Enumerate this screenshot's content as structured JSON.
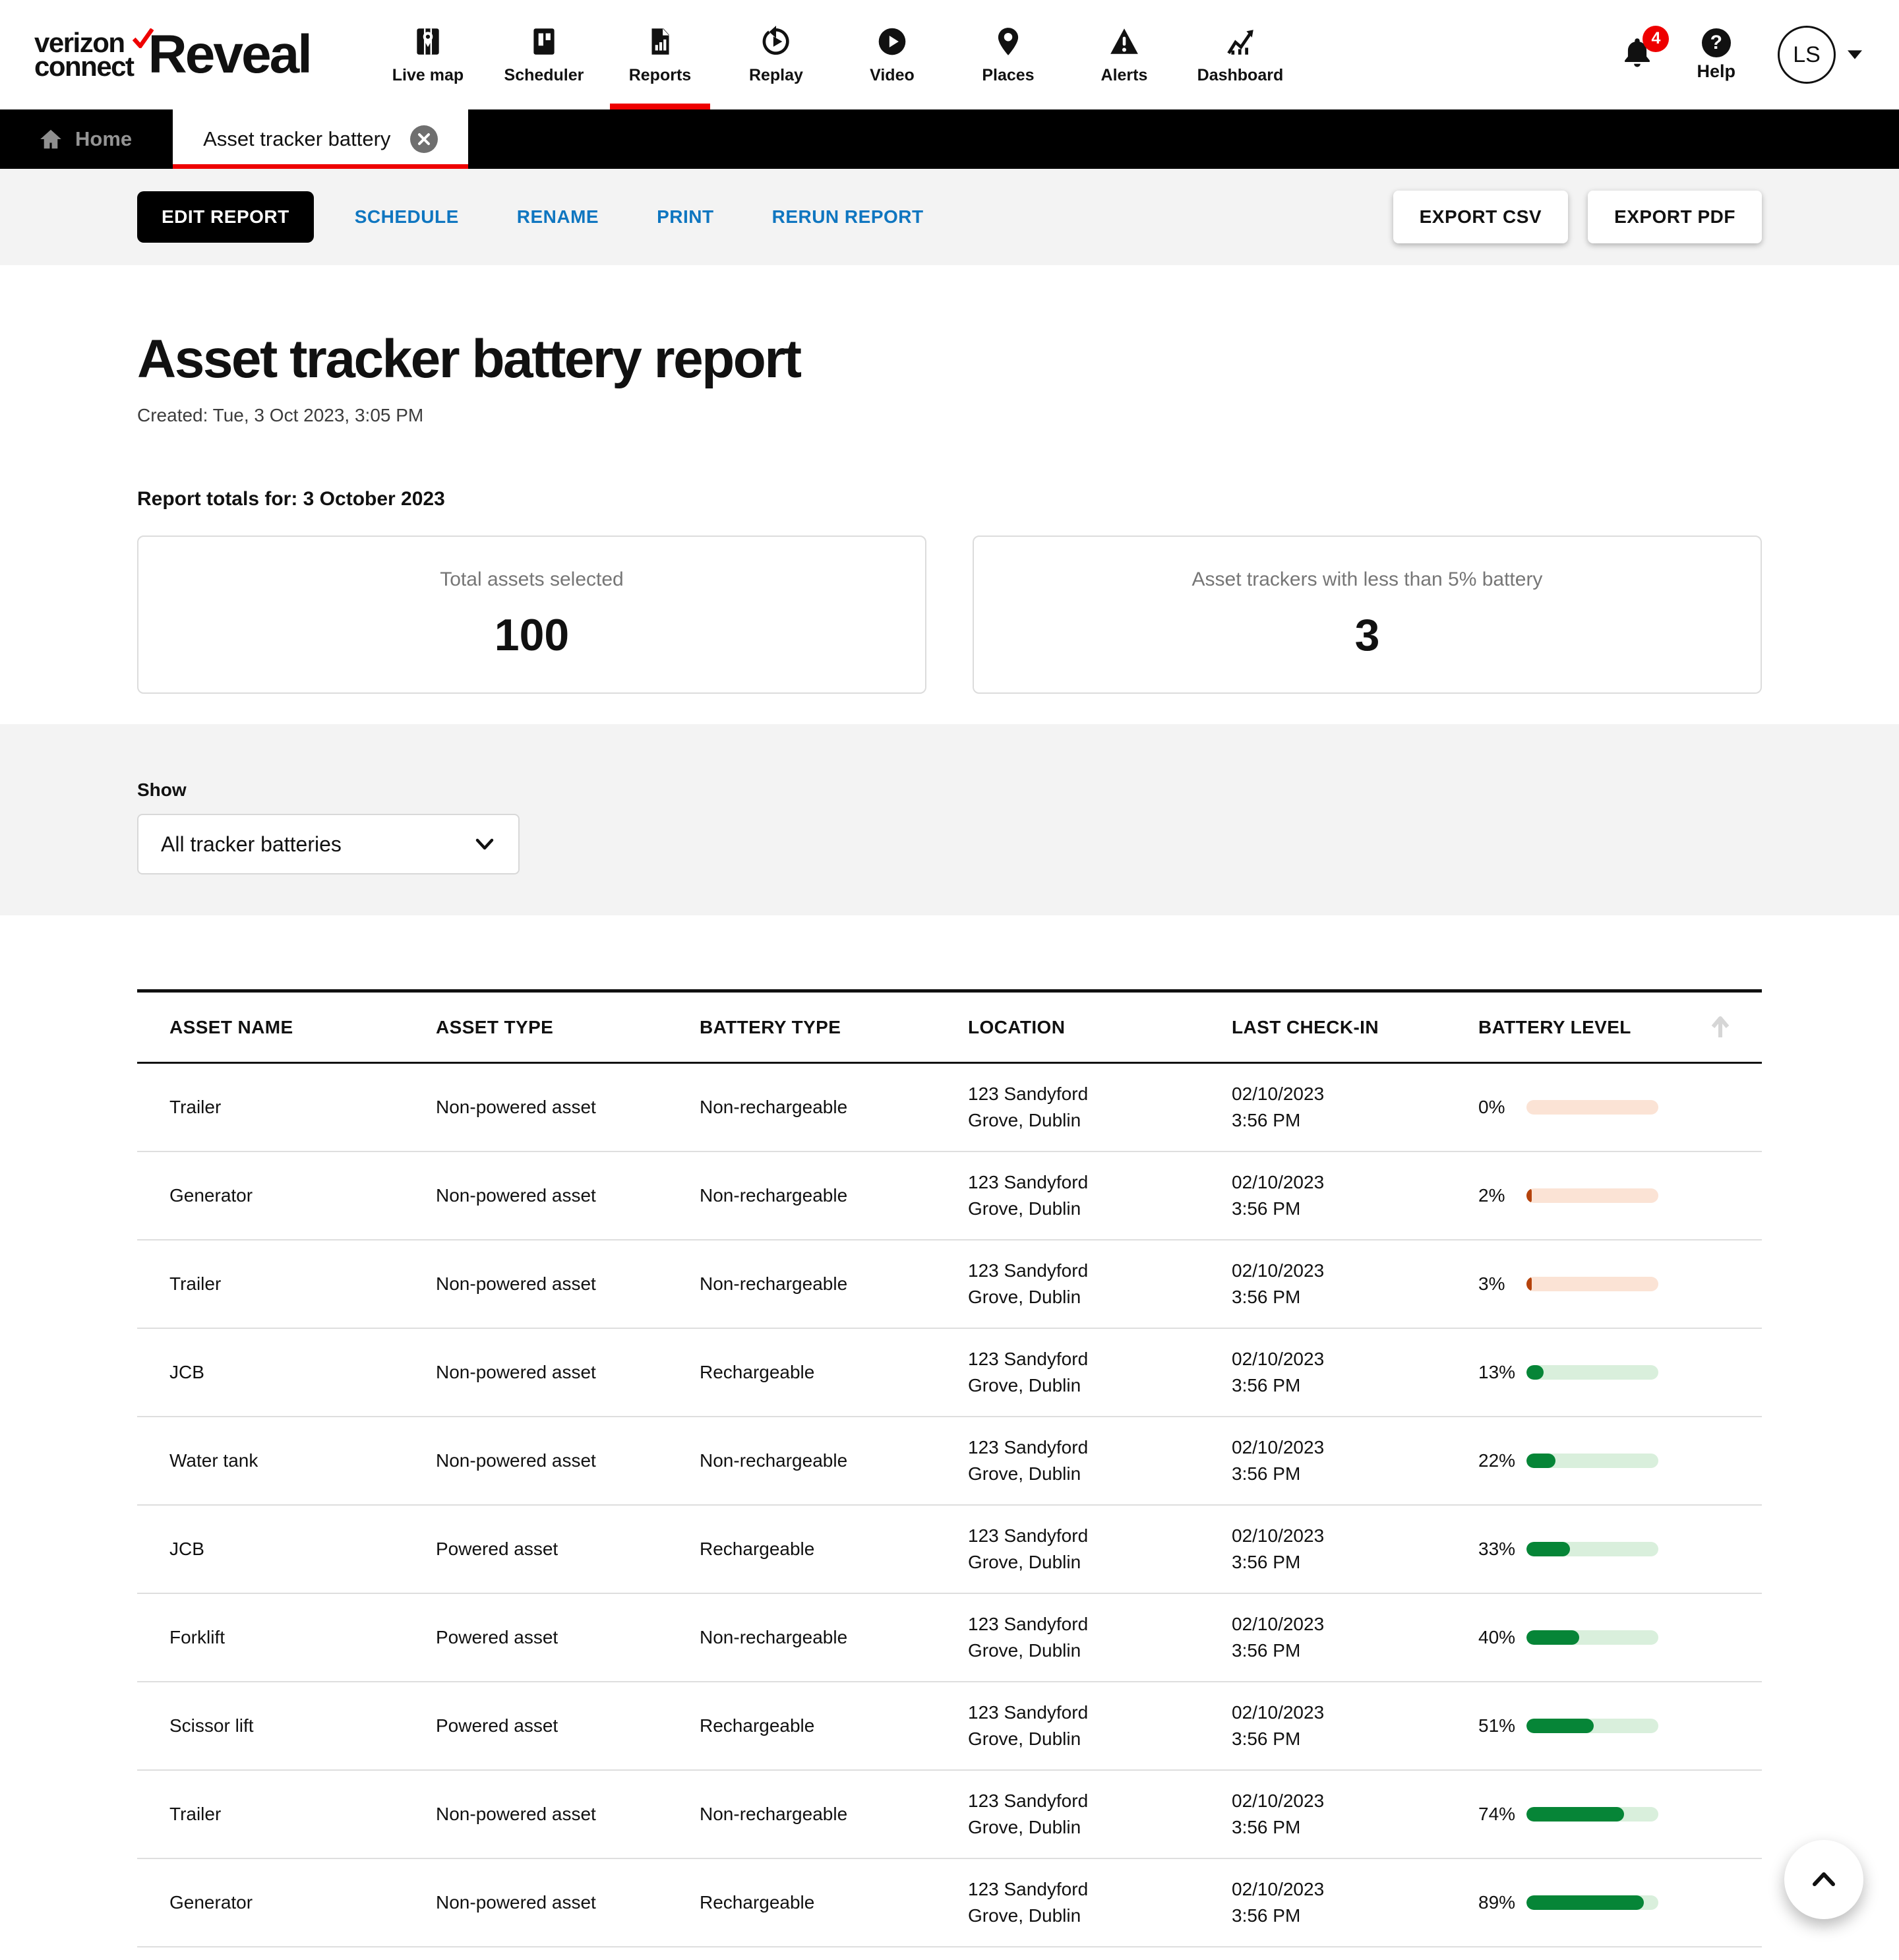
{
  "header": {
    "logo": {
      "line1": "verizon",
      "line2": "connect",
      "product": "Reveal"
    },
    "nav": [
      {
        "label": "Live map",
        "icon": "live-map-icon",
        "active": false
      },
      {
        "label": "Scheduler",
        "icon": "scheduler-icon",
        "active": false
      },
      {
        "label": "Reports",
        "icon": "reports-icon",
        "active": true
      },
      {
        "label": "Replay",
        "icon": "replay-icon",
        "active": false
      },
      {
        "label": "Video",
        "icon": "video-icon",
        "active": false
      },
      {
        "label": "Places",
        "icon": "places-icon",
        "active": false
      },
      {
        "label": "Alerts",
        "icon": "alerts-icon",
        "active": false
      },
      {
        "label": "Dashboard",
        "icon": "dashboard-icon",
        "active": false
      }
    ],
    "notifications_count": "4",
    "help_label": "Help",
    "avatar_initials": "LS"
  },
  "tabs": {
    "home_label": "Home",
    "active_tab_label": "Asset tracker battery"
  },
  "toolbar": {
    "edit_report": "EDIT REPORT",
    "schedule": "SCHEDULE",
    "rename": "RENAME",
    "print": "PRINT",
    "rerun": "RERUN REPORT",
    "export_csv": "EXPORT CSV",
    "export_pdf": "EXPORT PDF"
  },
  "report": {
    "title": "Asset tracker battery report",
    "created": "Created: Tue, 3 Oct 2023, 3:05 PM",
    "totals_heading": "Report totals for: 3 October 2023",
    "cards": [
      {
        "label": "Total assets selected",
        "value": "100"
      },
      {
        "label": "Asset trackers with less than 5% battery",
        "value": "3"
      }
    ]
  },
  "filter": {
    "label": "Show",
    "selected": "All tracker batteries"
  },
  "table": {
    "columns": [
      "ASSET NAME",
      "ASSET TYPE",
      "BATTERY TYPE",
      "LOCATION",
      "LAST CHECK-IN",
      "BATTERY LEVEL"
    ],
    "rows": [
      {
        "name": "Trailer",
        "type": "Non-powered asset",
        "battery_type": "Non-rechargeable",
        "location1": "123 Sandyford",
        "location2": "Grove, Dublin",
        "date": "02/10/2023",
        "time": "3:56 PM",
        "level": 0,
        "level_label": "0%"
      },
      {
        "name": "Generator",
        "type": "Non-powered asset",
        "battery_type": "Non-rechargeable",
        "location1": "123 Sandyford",
        "location2": "Grove, Dublin",
        "date": "02/10/2023",
        "time": "3:56 PM",
        "level": 2,
        "level_label": "2%"
      },
      {
        "name": "Trailer",
        "type": "Non-powered asset",
        "battery_type": "Non-rechargeable",
        "location1": "123 Sandyford",
        "location2": "Grove, Dublin",
        "date": "02/10/2023",
        "time": "3:56 PM",
        "level": 3,
        "level_label": "3%"
      },
      {
        "name": "JCB",
        "type": "Non-powered asset",
        "battery_type": "Rechargeable",
        "location1": "123 Sandyford",
        "location2": "Grove, Dublin",
        "date": "02/10/2023",
        "time": "3:56 PM",
        "level": 13,
        "level_label": "13%"
      },
      {
        "name": "Water tank",
        "type": "Non-powered asset",
        "battery_type": "Non-rechargeable",
        "location1": "123 Sandyford",
        "location2": "Grove, Dublin",
        "date": "02/10/2023",
        "time": "3:56 PM",
        "level": 22,
        "level_label": "22%"
      },
      {
        "name": "JCB",
        "type": "Powered asset",
        "battery_type": "Rechargeable",
        "location1": "123 Sandyford",
        "location2": "Grove, Dublin",
        "date": "02/10/2023",
        "time": "3:56 PM",
        "level": 33,
        "level_label": "33%"
      },
      {
        "name": "Forklift",
        "type": "Powered asset",
        "battery_type": "Non-rechargeable",
        "location1": "123 Sandyford",
        "location2": "Grove, Dublin",
        "date": "02/10/2023",
        "time": "3:56 PM",
        "level": 40,
        "level_label": "40%"
      },
      {
        "name": "Scissor lift",
        "type": "Powered asset",
        "battery_type": "Rechargeable",
        "location1": "123 Sandyford",
        "location2": "Grove, Dublin",
        "date": "02/10/2023",
        "time": "3:56 PM",
        "level": 51,
        "level_label": "51%"
      },
      {
        "name": "Trailer",
        "type": "Non-powered asset",
        "battery_type": "Non-rechargeable",
        "location1": "123 Sandyford",
        "location2": "Grove, Dublin",
        "date": "02/10/2023",
        "time": "3:56 PM",
        "level": 74,
        "level_label": "74%"
      },
      {
        "name": "Generator",
        "type": "Non-powered asset",
        "battery_type": "Rechargeable",
        "location1": "123 Sandyford",
        "location2": "Grove, Dublin",
        "date": "02/10/2023",
        "time": "3:56 PM",
        "level": 89,
        "level_label": "89%"
      }
    ]
  },
  "colors": {
    "accent_red": "#ee0000",
    "link_blue": "#0f76c0",
    "battery_low_fill": "#b5430c",
    "battery_low_track": "#fbe3d5",
    "battery_ok_fill": "#068537",
    "battery_ok_track": "#d9efdc"
  }
}
